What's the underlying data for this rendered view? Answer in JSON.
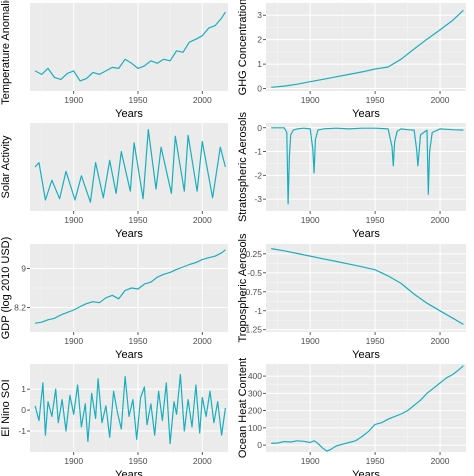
{
  "colors": {
    "panel_bg": "#ebebeb",
    "grid_major": "#ffffff",
    "grid_minor": "#f5f5f5",
    "line": "#1aaebd"
  },
  "chart_data": [
    {
      "id": "temperature",
      "type": "line",
      "xlabel": "Years",
      "ylabel": "Temperature Anomalies",
      "xlim": [
        1866,
        2020
      ],
      "ylim": [
        -0.75,
        1.0
      ],
      "xticks": [
        1900,
        1950,
        2000
      ],
      "yticks": [],
      "x": [
        1870,
        1875,
        1880,
        1885,
        1890,
        1895,
        1900,
        1905,
        1910,
        1915,
        1920,
        1925,
        1930,
        1935,
        1940,
        1945,
        1950,
        1955,
        1960,
        1965,
        1970,
        1975,
        1980,
        1985,
        1990,
        1995,
        2000,
        2005,
        2010,
        2015,
        2018
      ],
      "y": [
        -0.35,
        -0.42,
        -0.3,
        -0.48,
        -0.52,
        -0.4,
        -0.35,
        -0.55,
        -0.5,
        -0.38,
        -0.42,
        -0.35,
        -0.28,
        -0.3,
        -0.12,
        -0.2,
        -0.3,
        -0.25,
        -0.15,
        -0.2,
        -0.12,
        -0.15,
        0.05,
        0.02,
        0.22,
        0.28,
        0.35,
        0.5,
        0.55,
        0.7,
        0.82
      ]
    },
    {
      "id": "ghg",
      "type": "line",
      "xlabel": "Years",
      "ylabel": "GHG Concentration",
      "xlim": [
        1866,
        2020
      ],
      "ylim": [
        -0.1,
        3.5
      ],
      "xticks": [
        1900,
        1950,
        2000
      ],
      "yticks": [
        0,
        1,
        2,
        3
      ],
      "x": [
        1870,
        1880,
        1890,
        1900,
        1910,
        1920,
        1930,
        1940,
        1950,
        1960,
        1970,
        1980,
        1990,
        2000,
        2010,
        2018
      ],
      "y": [
        0.05,
        0.1,
        0.18,
        0.28,
        0.38,
        0.48,
        0.58,
        0.68,
        0.8,
        0.88,
        1.2,
        1.62,
        2.02,
        2.4,
        2.8,
        3.2
      ]
    },
    {
      "id": "solar",
      "type": "line",
      "xlabel": "Years",
      "ylabel": "Solar Activity",
      "xlim": [
        1866,
        2020
      ],
      "ylim": [
        -1.0,
        1.0
      ],
      "xticks": [
        1900,
        1950,
        2000
      ],
      "yticks": [],
      "x": [
        1870,
        1873,
        1878,
        1883,
        1889,
        1894,
        1901,
        1906,
        1913,
        1917,
        1923,
        1928,
        1933,
        1937,
        1944,
        1947,
        1954,
        1958,
        1964,
        1968,
        1976,
        1979,
        1986,
        1989,
        1996,
        2000,
        2008,
        2014,
        2018
      ],
      "y": [
        0.0,
        0.1,
        -0.75,
        -0.3,
        -0.72,
        -0.1,
        -0.75,
        -0.2,
        -0.8,
        0.1,
        -0.7,
        0.15,
        -0.6,
        0.35,
        -0.55,
        0.55,
        -0.72,
        0.85,
        -0.5,
        0.45,
        -0.6,
        0.7,
        -0.55,
        0.72,
        -0.55,
        0.58,
        -0.7,
        0.45,
        0.0
      ]
    },
    {
      "id": "strat_aerosols",
      "type": "line",
      "xlabel": "Years",
      "ylabel": "Stratospheric Aerosols",
      "xlim": [
        1866,
        2020
      ],
      "ylim": [
        -3.5,
        0.2
      ],
      "xticks": [
        1900,
        1950,
        2000
      ],
      "yticks": [
        0,
        -1,
        -2,
        -3
      ],
      "x": [
        1870,
        1880,
        1882,
        1883,
        1884,
        1885,
        1887,
        1890,
        1895,
        1900,
        1902,
        1903,
        1904,
        1906,
        1910,
        1920,
        1930,
        1940,
        1950,
        1955,
        1960,
        1963,
        1964,
        1965,
        1967,
        1970,
        1975,
        1980,
        1982,
        1983,
        1985,
        1990,
        1991,
        1992,
        1994,
        2000,
        2010,
        2018
      ],
      "y": [
        0.0,
        0.0,
        -0.2,
        -3.2,
        -1.2,
        -0.3,
        -0.1,
        -0.05,
        -0.02,
        -0.05,
        -0.9,
        -1.9,
        -0.5,
        -0.1,
        -0.05,
        -0.02,
        -0.05,
        -0.02,
        -0.02,
        -0.03,
        -0.05,
        -0.8,
        -1.6,
        -0.6,
        -0.15,
        -0.05,
        -0.08,
        -0.1,
        -0.9,
        -1.6,
        -0.3,
        -0.1,
        -2.8,
        -1.0,
        -0.2,
        -0.05,
        -0.08,
        -0.1
      ]
    },
    {
      "id": "gdp",
      "type": "line",
      "xlabel": "Years",
      "ylabel": "GDP (log 2010 USD)",
      "xlim": [
        1866,
        2020
      ],
      "ylim": [
        7.7,
        9.5
      ],
      "xticks": [
        1900,
        1950,
        2000
      ],
      "yticks": [
        8.2,
        9.0
      ],
      "x": [
        1870,
        1875,
        1880,
        1885,
        1890,
        1895,
        1900,
        1905,
        1910,
        1915,
        1920,
        1925,
        1930,
        1935,
        1940,
        1945,
        1950,
        1955,
        1960,
        1965,
        1970,
        1975,
        1980,
        1985,
        1990,
        1995,
        2000,
        2005,
        2010,
        2015,
        2018
      ],
      "y": [
        7.88,
        7.9,
        7.95,
        7.98,
        8.05,
        8.1,
        8.15,
        8.22,
        8.28,
        8.32,
        8.3,
        8.4,
        8.45,
        8.38,
        8.55,
        8.6,
        8.58,
        8.68,
        8.72,
        8.82,
        8.88,
        8.92,
        8.98,
        9.03,
        9.08,
        9.12,
        9.18,
        9.22,
        9.25,
        9.32,
        9.38
      ]
    },
    {
      "id": "trop_aerosols",
      "type": "line",
      "xlabel": "Years",
      "ylabel": "Tropospheric Aerosols",
      "xlim": [
        1866,
        2020
      ],
      "ylim": [
        -1.28,
        -0.12
      ],
      "xticks": [
        1900,
        1950,
        2000
      ],
      "yticks": [
        -0.25,
        -0.5,
        -0.75,
        -1.0,
        -1.25
      ],
      "x": [
        1870,
        1880,
        1890,
        1900,
        1910,
        1920,
        1930,
        1940,
        1950,
        1960,
        1970,
        1980,
        1990,
        2000,
        2010,
        2018
      ],
      "y": [
        -0.18,
        -0.21,
        -0.245,
        -0.28,
        -0.315,
        -0.35,
        -0.385,
        -0.42,
        -0.46,
        -0.54,
        -0.64,
        -0.78,
        -0.9,
        -1.0,
        -1.1,
        -1.18
      ]
    },
    {
      "id": "enso",
      "type": "line",
      "xlabel": "Years",
      "ylabel": "El Nino SOI",
      "xlim": [
        1866,
        2020
      ],
      "ylim": [
        -2.0,
        2.2
      ],
      "xticks": [
        1900,
        1950,
        2000
      ],
      "yticks": [
        1,
        0,
        -1
      ],
      "x": [
        1870,
        1873,
        1876,
        1878,
        1880,
        1883,
        1886,
        1888,
        1891,
        1894,
        1897,
        1900,
        1903,
        1906,
        1909,
        1911,
        1914,
        1917,
        1919,
        1922,
        1925,
        1928,
        1931,
        1934,
        1937,
        1940,
        1943,
        1946,
        1949,
        1952,
        1955,
        1957,
        1960,
        1963,
        1966,
        1969,
        1972,
        1975,
        1978,
        1980,
        1983,
        1986,
        1989,
        1992,
        1995,
        1998,
        2000,
        2003,
        2006,
        2009,
        2012,
        2015,
        2018
      ],
      "y": [
        0.2,
        -0.5,
        1.3,
        -1.2,
        0.4,
        -0.3,
        1.0,
        -0.6,
        0.5,
        -1.0,
        0.7,
        -0.2,
        1.2,
        -0.8,
        0.3,
        -1.5,
        0.8,
        -0.4,
        1.5,
        -0.6,
        0.2,
        -1.3,
        0.9,
        -0.1,
        -0.9,
        1.6,
        -0.3,
        0.5,
        -1.4,
        0.6,
        1.1,
        -0.7,
        0.3,
        -1.2,
        0.9,
        -0.5,
        1.3,
        -1.6,
        0.4,
        -0.2,
        1.7,
        -1.0,
        0.5,
        -0.8,
        1.2,
        -1.1,
        0.6,
        -0.3,
        0.9,
        -0.6,
        0.4,
        -1.2,
        0.1
      ]
    },
    {
      "id": "ocean_heat",
      "type": "line",
      "xlabel": "Years",
      "ylabel": "Ocean Heat Content",
      "xlim": [
        1866,
        2020
      ],
      "ylim": [
        -40,
        470
      ],
      "xticks": [
        1900,
        1950,
        2000
      ],
      "yticks": [
        0,
        100,
        200,
        300,
        400
      ],
      "x": [
        1870,
        1875,
        1880,
        1885,
        1890,
        1895,
        1900,
        1903,
        1906,
        1910,
        1913,
        1916,
        1920,
        1925,
        1930,
        1935,
        1940,
        1945,
        1950,
        1955,
        1960,
        1965,
        1970,
        1975,
        1980,
        1985,
        1990,
        1995,
        2000,
        2005,
        2010,
        2015,
        2018
      ],
      "y": [
        10,
        12,
        20,
        18,
        25,
        22,
        15,
        25,
        10,
        -20,
        -35,
        -25,
        -5,
        5,
        15,
        25,
        50,
        80,
        120,
        130,
        150,
        165,
        180,
        200,
        230,
        260,
        300,
        330,
        360,
        390,
        410,
        440,
        460
      ]
    }
  ]
}
